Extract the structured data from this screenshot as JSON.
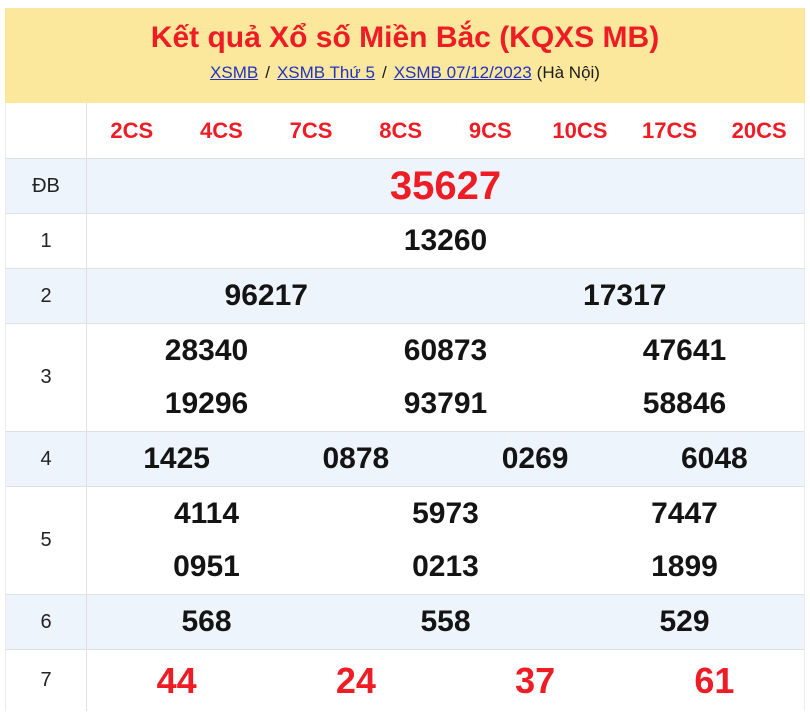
{
  "header": {
    "title": "Kết quả Xổ số Miền Bắc (KQXS MB)",
    "breadcrumb": {
      "links": [
        "XSMB",
        "XSMB Thứ 5",
        "XSMB 07/12/2023"
      ],
      "separator": "/",
      "suffix": "(Hà Nội)"
    }
  },
  "colors": {
    "header_bg": "#FCE89C",
    "accent_red": "#EE1C25",
    "link_blue": "#2233BF",
    "row_alt_bg": "#EDF4FB",
    "border_gray": "#E0E0E0"
  },
  "table": {
    "column_headers": [
      "2CS",
      "4CS",
      "7CS",
      "8CS",
      "9CS",
      "10CS",
      "17CS",
      "20CS"
    ],
    "rows": [
      {
        "label": "ĐB",
        "style": "jackpot",
        "alt": true,
        "lines": [
          [
            "35627"
          ]
        ]
      },
      {
        "label": "1",
        "style": "normal",
        "alt": false,
        "lines": [
          [
            "13260"
          ]
        ]
      },
      {
        "label": "2",
        "style": "normal",
        "alt": true,
        "lines": [
          [
            "96217",
            "17317"
          ]
        ]
      },
      {
        "label": "3",
        "style": "normal",
        "alt": false,
        "lines": [
          [
            "28340",
            "60873",
            "47641"
          ],
          [
            "19296",
            "93791",
            "58846"
          ]
        ]
      },
      {
        "label": "4",
        "style": "normal",
        "alt": true,
        "lines": [
          [
            "1425",
            "0878",
            "0269",
            "6048"
          ]
        ]
      },
      {
        "label": "5",
        "style": "normal",
        "alt": false,
        "lines": [
          [
            "4114",
            "5973",
            "7447"
          ],
          [
            "0951",
            "0213",
            "1899"
          ]
        ]
      },
      {
        "label": "6",
        "style": "normal",
        "alt": true,
        "lines": [
          [
            "568",
            "558",
            "529"
          ]
        ]
      },
      {
        "label": "7",
        "style": "red",
        "alt": false,
        "lines": [
          [
            "44",
            "24",
            "37",
            "61"
          ]
        ]
      }
    ]
  }
}
